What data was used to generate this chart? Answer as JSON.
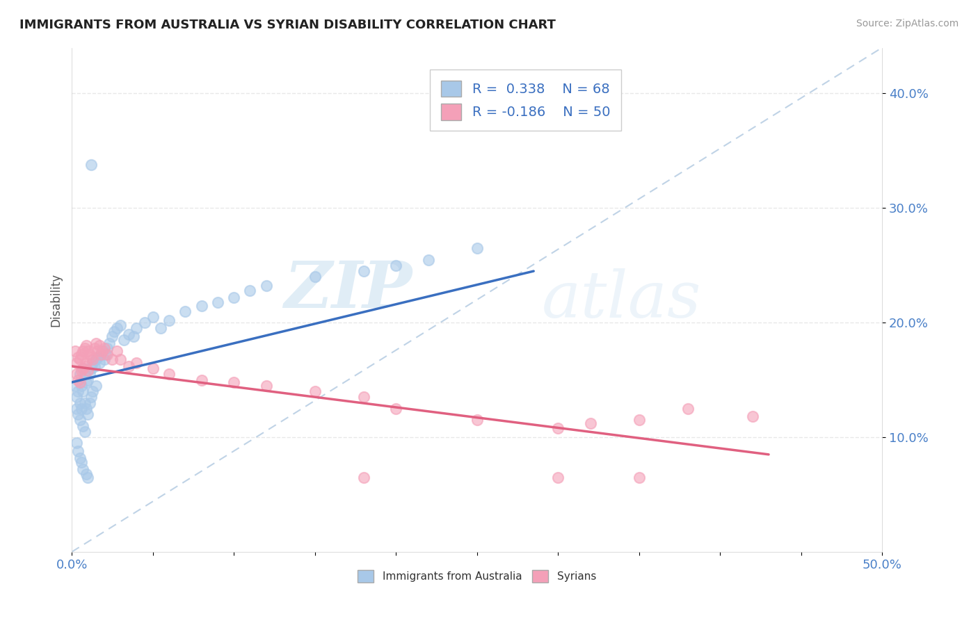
{
  "title": "IMMIGRANTS FROM AUSTRALIA VS SYRIAN DISABILITY CORRELATION CHART",
  "source": "Source: ZipAtlas.com",
  "ylabel": "Disability",
  "xlim": [
    0.0,
    0.5
  ],
  "ylim": [
    0.0,
    0.44
  ],
  "yticks": [
    0.1,
    0.2,
    0.3,
    0.4
  ],
  "ytick_labels": [
    "10.0%",
    "20.0%",
    "30.0%",
    "40.0%"
  ],
  "xticks": [
    0.0,
    0.05,
    0.1,
    0.15,
    0.2,
    0.25,
    0.3,
    0.35,
    0.4,
    0.45,
    0.5
  ],
  "xtick_labels": [
    "0.0%",
    "",
    "",
    "",
    "",
    "",
    "",
    "",
    "",
    "",
    "50.0%"
  ],
  "color_australia": "#a8c8e8",
  "color_syrians": "#f4a0b8",
  "color_australia_line": "#3a6fc0",
  "color_syrians_line": "#e06080",
  "color_trend_dashed": "#b0c8e0",
  "watermark_zip": "ZIP",
  "watermark_atlas": "atlas",
  "aus_line_x": [
    0.0,
    0.285
  ],
  "aus_line_y": [
    0.148,
    0.245
  ],
  "syr_line_x": [
    0.0,
    0.43
  ],
  "syr_line_y": [
    0.162,
    0.085
  ],
  "trend_x": [
    0.0,
    0.5
  ],
  "trend_y": [
    0.0,
    0.44
  ],
  "australia_x": [
    0.002,
    0.003,
    0.003,
    0.004,
    0.004,
    0.005,
    0.005,
    0.005,
    0.006,
    0.006,
    0.007,
    0.007,
    0.007,
    0.008,
    0.008,
    0.008,
    0.009,
    0.009,
    0.01,
    0.01,
    0.011,
    0.011,
    0.012,
    0.012,
    0.013,
    0.013,
    0.014,
    0.015,
    0.015,
    0.016,
    0.017,
    0.018,
    0.019,
    0.02,
    0.021,
    0.022,
    0.023,
    0.025,
    0.026,
    0.028,
    0.03,
    0.032,
    0.035,
    0.038,
    0.04,
    0.045,
    0.05,
    0.055,
    0.06,
    0.07,
    0.08,
    0.09,
    0.1,
    0.11,
    0.12,
    0.15,
    0.18,
    0.2,
    0.22,
    0.25,
    0.003,
    0.004,
    0.005,
    0.006,
    0.007,
    0.009,
    0.01,
    0.012
  ],
  "australia_y": [
    0.145,
    0.135,
    0.125,
    0.14,
    0.12,
    0.155,
    0.13,
    0.115,
    0.145,
    0.125,
    0.16,
    0.14,
    0.11,
    0.155,
    0.13,
    0.105,
    0.148,
    0.125,
    0.15,
    0.12,
    0.155,
    0.13,
    0.16,
    0.135,
    0.165,
    0.14,
    0.162,
    0.168,
    0.145,
    0.17,
    0.165,
    0.172,
    0.175,
    0.168,
    0.172,
    0.178,
    0.182,
    0.188,
    0.192,
    0.195,
    0.198,
    0.185,
    0.19,
    0.188,
    0.195,
    0.2,
    0.205,
    0.195,
    0.202,
    0.21,
    0.215,
    0.218,
    0.222,
    0.228,
    0.232,
    0.24,
    0.245,
    0.25,
    0.255,
    0.265,
    0.095,
    0.088,
    0.082,
    0.078,
    0.072,
    0.068,
    0.065,
    0.338
  ],
  "syrians_x": [
    0.002,
    0.003,
    0.003,
    0.004,
    0.004,
    0.005,
    0.005,
    0.006,
    0.006,
    0.007,
    0.007,
    0.008,
    0.008,
    0.009,
    0.009,
    0.01,
    0.01,
    0.011,
    0.012,
    0.013,
    0.014,
    0.015,
    0.016,
    0.017,
    0.018,
    0.019,
    0.02,
    0.022,
    0.025,
    0.028,
    0.03,
    0.035,
    0.04,
    0.05,
    0.06,
    0.08,
    0.1,
    0.12,
    0.15,
    0.18,
    0.2,
    0.25,
    0.3,
    0.32,
    0.35,
    0.38,
    0.42,
    0.18,
    0.3,
    0.35
  ],
  "syrians_y": [
    0.175,
    0.165,
    0.155,
    0.17,
    0.15,
    0.168,
    0.148,
    0.172,
    0.158,
    0.175,
    0.16,
    0.178,
    0.162,
    0.18,
    0.165,
    0.175,
    0.158,
    0.172,
    0.17,
    0.168,
    0.178,
    0.182,
    0.175,
    0.18,
    0.172,
    0.175,
    0.178,
    0.172,
    0.168,
    0.175,
    0.168,
    0.162,
    0.165,
    0.16,
    0.155,
    0.15,
    0.148,
    0.145,
    0.14,
    0.135,
    0.125,
    0.115,
    0.108,
    0.112,
    0.115,
    0.125,
    0.118,
    0.065,
    0.065,
    0.065
  ],
  "background_color": "#ffffff",
  "grid_color": "#e8e8e8"
}
